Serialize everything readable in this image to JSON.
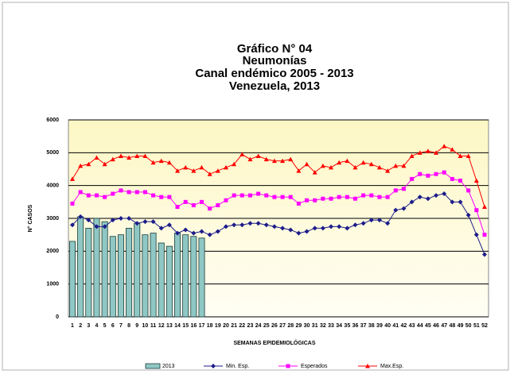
{
  "chart_data": {
    "type": "bar_line",
    "title": [
      "Gráfico  N° 04",
      "Neumonías",
      "Canal endémico 2005 - 2013",
      "Venezuela, 2013"
    ],
    "y_label": "N° CASOS",
    "x_label": "SEMANAS EPIDEMIOLÓGICAS",
    "categories": [
      "1",
      "2",
      "3",
      "4",
      "5",
      "6",
      "7",
      "8",
      "9",
      "10",
      "11",
      "12",
      "13",
      "14",
      "15",
      "16",
      "17",
      "18",
      "19",
      "20",
      "21",
      "22",
      "23",
      "24",
      "25",
      "26",
      "27",
      "28",
      "29",
      "30",
      "31",
      "32",
      "33",
      "34",
      "35",
      "36",
      "37",
      "38",
      "39",
      "40",
      "41",
      "42",
      "43",
      "44",
      "45",
      "46",
      "47",
      "48",
      "49",
      "50",
      "51",
      "52"
    ],
    "ylim": [
      0,
      6000
    ],
    "yticks": [
      0,
      1000,
      2000,
      3000,
      4000,
      5000,
      6000
    ],
    "grid": true,
    "series": [
      {
        "name": "2013",
        "kind": "bar",
        "color": "#8fc7c4",
        "values": [
          2300,
          3050,
          2700,
          3000,
          2900,
          2450,
          2500,
          2700,
          2850,
          2500,
          2550,
          2250,
          2150,
          2550,
          2500,
          2450,
          2400,
          null,
          null,
          null,
          null,
          null,
          null,
          null,
          null,
          null,
          null,
          null,
          null,
          null,
          null,
          null,
          null,
          null,
          null,
          null,
          null,
          null,
          null,
          null,
          null,
          null,
          null,
          null,
          null,
          null,
          null,
          null,
          null,
          null,
          null,
          null
        ]
      },
      {
        "name": "Min. Esp.",
        "kind": "line",
        "marker": "diamond",
        "color": "#1c1c8a",
        "values": [
          2800,
          3050,
          2950,
          2750,
          2750,
          2950,
          3000,
          3000,
          2850,
          2900,
          2900,
          2700,
          2800,
          2550,
          2650,
          2550,
          2600,
          2500,
          2600,
          2750,
          2800,
          2800,
          2850,
          2850,
          2800,
          2750,
          2700,
          2650,
          2550,
          2600,
          2700,
          2700,
          2750,
          2750,
          2700,
          2800,
          2850,
          2950,
          2950,
          2850,
          3250,
          3300,
          3500,
          3650,
          3600,
          3700,
          3750,
          3500,
          3500,
          3100,
          2500,
          1900
        ]
      },
      {
        "name": "Esperados",
        "kind": "line",
        "marker": "square",
        "color": "#ff00ff",
        "values": [
          3450,
          3800,
          3700,
          3700,
          3650,
          3750,
          3850,
          3800,
          3800,
          3800,
          3700,
          3650,
          3650,
          3350,
          3500,
          3400,
          3500,
          3300,
          3400,
          3550,
          3700,
          3700,
          3700,
          3750,
          3700,
          3650,
          3650,
          3650,
          3450,
          3550,
          3550,
          3600,
          3600,
          3650,
          3650,
          3600,
          3700,
          3700,
          3650,
          3650,
          3850,
          3900,
          4200,
          4350,
          4300,
          4350,
          4400,
          4200,
          4150,
          3850,
          3250,
          2500
        ]
      },
      {
        "name": "Max.Esp.",
        "kind": "line",
        "marker": "triangle",
        "color": "#ff0000",
        "values": [
          4200,
          4600,
          4650,
          4850,
          4650,
          4800,
          4900,
          4850,
          4900,
          4900,
          4700,
          4750,
          4700,
          4450,
          4550,
          4450,
          4550,
          4350,
          4450,
          4550,
          4650,
          4950,
          4800,
          4900,
          4800,
          4750,
          4750,
          4800,
          4450,
          4650,
          4400,
          4600,
          4550,
          4700,
          4750,
          4550,
          4700,
          4650,
          4550,
          4450,
          4600,
          4600,
          4900,
          5000,
          5050,
          5000,
          5200,
          5100,
          4900,
          4900,
          4150,
          3350
        ]
      }
    ]
  }
}
